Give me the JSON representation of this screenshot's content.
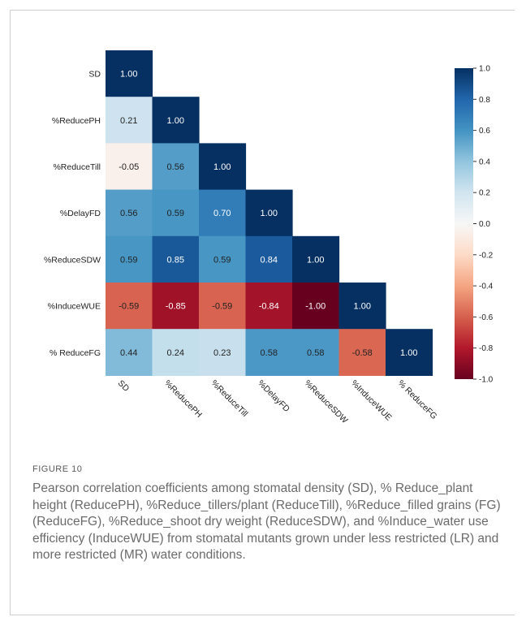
{
  "figure": {
    "label": "FIGURE 10",
    "caption": "Pearson correlation coefficients among stomatal density (SD), % Reduce_plant height (ReducePH), %Reduce_tillers/plant (ReduceTill), %Reduce_filled grains (FG) (ReduceFG), %Reduce_shoot dry weight (ReduceSDW), and %Induce_water use efficiency (InduceWUE) from stomatal mutants grown under less restricted (LR) and more restricted (MR) water conditions."
  },
  "chart_data": {
    "type": "heatmap",
    "row_labels": [
      "SD",
      "%ReducePH",
      "%ReduceTill",
      "%DelayFD",
      "%ReduceSDW",
      "%InduceWUE",
      "% ReduceFG"
    ],
    "col_labels": [
      "SD",
      "%ReducePH",
      "%ReduceTill",
      "%DelayFD",
      "%ReduceSDW",
      "%InduceWUE",
      "% ReduceFG"
    ],
    "values": [
      [
        1.0
      ],
      [
        0.21,
        1.0
      ],
      [
        -0.05,
        0.56,
        1.0
      ],
      [
        0.56,
        0.59,
        0.7,
        1.0
      ],
      [
        0.59,
        0.85,
        0.59,
        0.84,
        1.0
      ],
      [
        -0.59,
        -0.85,
        -0.59,
        -0.84,
        -1.0,
        1.0
      ],
      [
        0.44,
        0.24,
        0.23,
        0.58,
        0.58,
        -0.58,
        1.0
      ]
    ],
    "value_labels": [
      [
        "1.00"
      ],
      [
        "0.21",
        "1.00"
      ],
      [
        "-0.05",
        "0.56",
        "1.00"
      ],
      [
        "0.56",
        "0.59",
        "0.70",
        "1.00"
      ],
      [
        "0.59",
        "0.85",
        "0.59",
        "0.84",
        "1.00"
      ],
      [
        "-0.59",
        "-0.85",
        "-0.59",
        "-0.84",
        "-1.00",
        "1.00"
      ],
      [
        "0.44",
        "0.24",
        "0.23",
        "0.58",
        "0.58",
        "-0.58",
        "1.00"
      ]
    ],
    "triangle": "lower",
    "colorscale": {
      "name": "RdBu",
      "range": [
        -1.0,
        1.0
      ],
      "ticks": [
        1.0,
        0.8,
        0.6,
        0.4,
        0.2,
        0.0,
        -0.2,
        -0.4,
        -0.6,
        -0.8,
        -1.0
      ],
      "tick_labels": [
        "1.0",
        "0.8",
        "0.6",
        "0.4",
        "0.2",
        "0.0",
        "-0.2",
        "-0.4",
        "-0.6",
        "-0.8",
        "-1.0"
      ]
    },
    "colors": {
      "neg": "#67001f",
      "pos": "#053061",
      "mid": "#f7f7f7"
    }
  }
}
